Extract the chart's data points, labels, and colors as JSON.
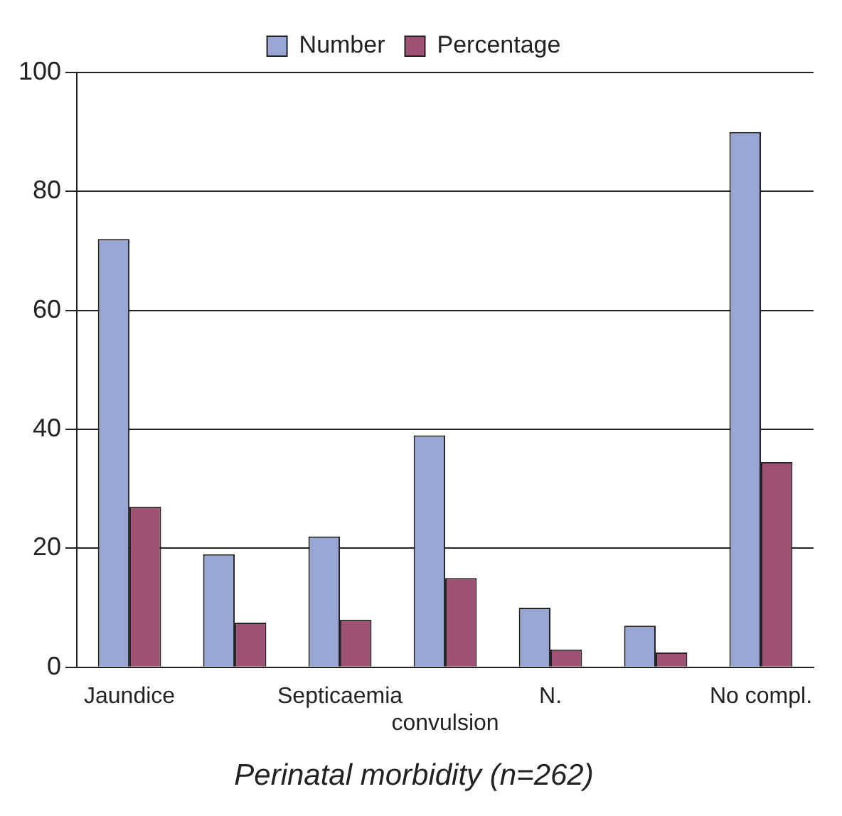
{
  "chart_data": {
    "type": "bar",
    "title": "Perinatal morbidity (n=262)",
    "categories": [
      "Jaundice",
      null,
      "Septicaemia",
      "convulsion",
      "N.",
      null,
      "No compl."
    ],
    "series": [
      {
        "name": "Number",
        "color": "#99a6d4",
        "values": [
          72,
          19,
          22,
          39,
          10,
          7,
          90
        ]
      },
      {
        "name": "Percentage",
        "color": "#a05274",
        "values": [
          27,
          7.5,
          8,
          15,
          3,
          2.5,
          34.5
        ]
      }
    ],
    "ylim": [
      0,
      100
    ],
    "yticks": [
      0,
      20,
      40,
      60,
      80,
      100
    ],
    "grid": "y",
    "legend": "top"
  }
}
